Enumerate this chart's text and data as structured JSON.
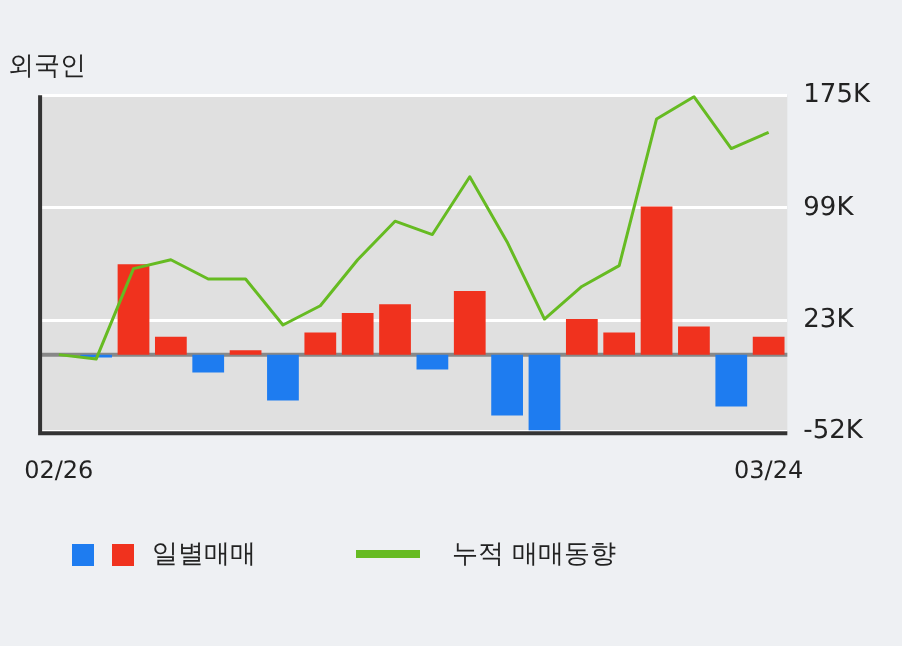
{
  "chart_data": {
    "type": "bar",
    "title": "외국인",
    "categories": [
      "02/26",
      null,
      null,
      null,
      null,
      null,
      null,
      null,
      null,
      null,
      null,
      null,
      null,
      null,
      null,
      null,
      null,
      null,
      null,
      "03/24"
    ],
    "series": [
      {
        "name": "일별매매",
        "colors": [
          "#f0321e",
          "#1e7cf0",
          "#f0321e",
          "#f0321e",
          "#1e7cf0",
          "#f0321e",
          "#1e7cf0",
          "#f0321e",
          "#f0321e",
          "#f0321e",
          "#1e7cf0",
          "#f0321e",
          "#1e7cf0",
          "#1e7cf0",
          "#f0321e",
          "#f0321e",
          "#f0321e",
          "#f0321e",
          "#1e7cf0",
          "#f0321e"
        ],
        "values": [
          0,
          -2,
          61,
          12,
          -12,
          3,
          -31,
          15,
          28,
          34,
          -10,
          43,
          -41,
          -51,
          24,
          15,
          100,
          19,
          -35,
          12
        ]
      },
      {
        "name": "누적 매매동향",
        "type": "line",
        "color": "#66bb22",
        "values": [
          0,
          -3,
          58,
          64,
          51,
          51,
          20,
          33,
          64,
          90,
          81,
          120,
          76,
          24,
          46,
          60,
          159,
          174,
          139,
          150
        ]
      }
    ],
    "ylim": [
      -53,
      175
    ],
    "yticks": [
      {
        "value": -52,
        "label": "-52K"
      },
      {
        "value": 23,
        "label": "23K"
      },
      {
        "value": 99,
        "label": "99K"
      },
      {
        "value": 175,
        "label": "175K"
      }
    ],
    "grid": "y",
    "legend": "bottom",
    "marker": "none"
  }
}
